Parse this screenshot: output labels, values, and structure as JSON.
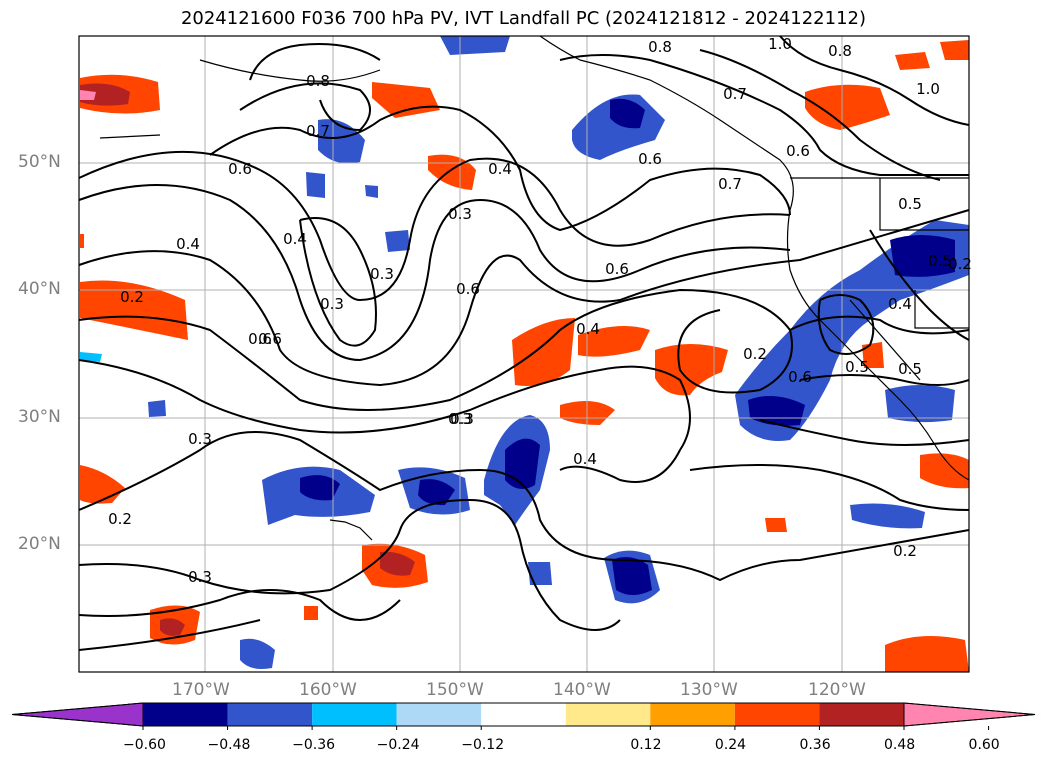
{
  "title": "2024121600 F036 700 hPa PV, IVT Landfall PC (2024121812 - 2024122112)",
  "lat_labels": [
    "50°N",
    "40°N",
    "30°N",
    "20°N"
  ],
  "lon_labels": [
    "170°W",
    "160°W",
    "150°W",
    "140°W",
    "130°W",
    "120°W"
  ],
  "colorbar": {
    "ticks": [
      "−0.60",
      "−0.48",
      "−0.36",
      "−0.24",
      "−0.12",
      "0.12",
      "0.24",
      "0.36",
      "0.48",
      "0.60"
    ],
    "colors": [
      "#9933cc",
      "#00008b",
      "#3355cc",
      "#00bfff",
      "#add8f6",
      "#ffffff",
      "#ffe98a",
      "#ffa000",
      "#ff4500",
      "#b22222",
      "#ff85b0"
    ]
  },
  "contour_labels": [
    "0.8",
    "0.7",
    "0.6",
    "0.6",
    "0.4",
    "0.4",
    "0.3",
    "0.2",
    "0.3",
    "0.6",
    "0.4",
    "0.3",
    "0.6",
    "0.3",
    "0.3",
    "0.2",
    "0.3",
    "0.4",
    "0.6",
    "0.4",
    "0.3",
    "0.2",
    "0.6",
    "0.2",
    "0.6",
    "0.5",
    "0.8",
    "0.7",
    "0.7",
    "0.6",
    "0.8",
    "1.0",
    "1.0",
    "0.5",
    "0.5",
    "0.4",
    "0.5",
    "0.2"
  ],
  "colors": {
    "pv_contour": "#000000",
    "coastline": "#000000",
    "grid": "#b0b0b0"
  }
}
